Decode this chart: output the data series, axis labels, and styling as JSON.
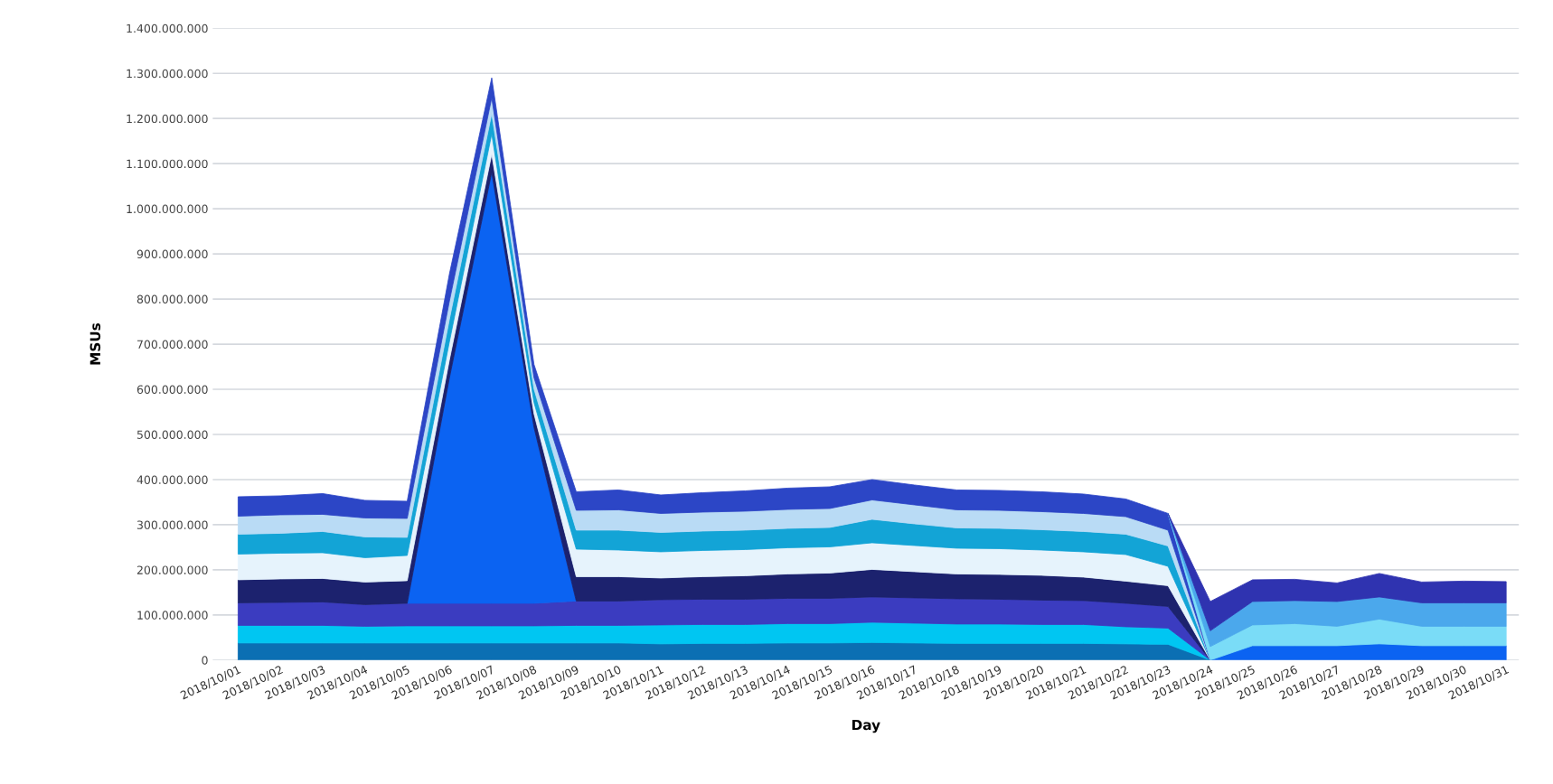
{
  "chart_data": {
    "type": "area",
    "stacked": true,
    "xlabel": "Day",
    "ylabel": "MSUs",
    "categories": [
      "2018/10/01",
      "2018/10/02",
      "2018/10/03",
      "2018/10/04",
      "2018/10/05",
      "2018/10/06",
      "2018/10/07",
      "2018/10/08",
      "2018/10/09",
      "2018/10/10",
      "2018/10/11",
      "2018/10/12",
      "2018/10/13",
      "2018/10/14",
      "2018/10/15",
      "2018/10/16",
      "2018/10/17",
      "2018/10/18",
      "2018/10/19",
      "2018/10/20",
      "2018/10/21",
      "2018/10/22",
      "2018/10/23",
      "2018/10/24",
      "2018/10/25",
      "2018/10/26",
      "2018/10/27",
      "2018/10/28",
      "2018/10/29",
      "2018/10/30",
      "2018/10/31"
    ],
    "series": [
      {
        "color": "#0b6fb3",
        "values": [
          38000000,
          38000000,
          38000000,
          38000000,
          38000000,
          38000000,
          38000000,
          38000000,
          38000000,
          38000000,
          36000000,
          37000000,
          37000000,
          38000000,
          38000000,
          39000000,
          38000000,
          37000000,
          37000000,
          37000000,
          37000000,
          36000000,
          35000000,
          0,
          null,
          null,
          null,
          null,
          null,
          null,
          null
        ]
      },
      {
        "color": "#00c6f2",
        "values": [
          39000000,
          39000000,
          39000000,
          37000000,
          38000000,
          38000000,
          38000000,
          38000000,
          39000000,
          39000000,
          42000000,
          42000000,
          42000000,
          43000000,
          43000000,
          45000000,
          44000000,
          43000000,
          43000000,
          42000000,
          42000000,
          38000000,
          36000000,
          0,
          null,
          null,
          null,
          null,
          null,
          null,
          null
        ]
      },
      {
        "color": "#3b3cc0",
        "values": [
          50000000,
          51000000,
          52000000,
          48000000,
          50000000,
          50000000,
          50000000,
          50000000,
          54000000,
          54000000,
          56000000,
          56000000,
          56000000,
          56000000,
          56000000,
          56000000,
          56000000,
          56000000,
          55000000,
          54000000,
          53000000,
          52000000,
          48000000,
          0,
          null,
          null,
          null,
          null,
          null,
          null,
          null
        ]
      },
      {
        "color": "#0b63f2",
        "values": [
          null,
          null,
          null,
          null,
          0,
          500000000,
          955000000,
          390000000,
          0,
          null,
          null,
          null,
          null,
          null,
          null,
          null,
          null,
          null,
          null,
          null,
          null,
          null,
          null,
          0,
          32000000,
          32000000,
          32000000,
          36000000,
          32000000,
          32000000,
          32000000
        ]
      },
      {
        "color": "#1c226e",
        "values": [
          51000000,
          52000000,
          52000000,
          50000000,
          50000000,
          40000000,
          40000000,
          30000000,
          54000000,
          54000000,
          48000000,
          50000000,
          52000000,
          54000000,
          56000000,
          61000000,
          58000000,
          55000000,
          55000000,
          55000000,
          52000000,
          49000000,
          46000000,
          0,
          null,
          null,
          null,
          null,
          null,
          null,
          null
        ]
      },
      {
        "color": "#e6f3fc",
        "values": [
          57000000,
          57000000,
          57000000,
          54000000,
          56000000,
          40000000,
          45000000,
          25000000,
          61000000,
          59000000,
          58000000,
          58000000,
          58000000,
          58000000,
          58000000,
          59000000,
          58000000,
          57000000,
          57000000,
          56000000,
          56000000,
          59000000,
          43000000,
          0,
          null,
          null,
          null,
          null,
          null,
          null,
          null
        ]
      },
      {
        "color": "#13a4d6",
        "values": [
          44000000,
          44000000,
          47000000,
          46000000,
          40000000,
          50000000,
          45000000,
          30000000,
          42000000,
          44000000,
          43000000,
          43000000,
          43000000,
          43000000,
          43000000,
          52000000,
          48000000,
          45000000,
          45000000,
          45000000,
          45000000,
          45000000,
          45000000,
          0,
          null,
          null,
          null,
          null,
          null,
          null,
          null
        ]
      },
      {
        "color": "#b9dbf5",
        "values": [
          40000000,
          41000000,
          38000000,
          42000000,
          42000000,
          40000000,
          35000000,
          25000000,
          44000000,
          45000000,
          42000000,
          42000000,
          42000000,
          42000000,
          42000000,
          43000000,
          42000000,
          40000000,
          40000000,
          40000000,
          40000000,
          39000000,
          35000000,
          0,
          null,
          null,
          null,
          null,
          null,
          null,
          null
        ]
      },
      {
        "color": "#2c46c6",
        "values": [
          43000000,
          42000000,
          46000000,
          39000000,
          38000000,
          60000000,
          44000000,
          29000000,
          41000000,
          44000000,
          41000000,
          43000000,
          45000000,
          47000000,
          48000000,
          45000000,
          44000000,
          44000000,
          44000000,
          44000000,
          43000000,
          39000000,
          37000000,
          0,
          null,
          null,
          null,
          null,
          null,
          null,
          null
        ]
      },
      {
        "color": "#7adcf7",
        "values": [
          null,
          null,
          null,
          null,
          null,
          null,
          null,
          null,
          null,
          null,
          null,
          null,
          null,
          null,
          null,
          null,
          null,
          null,
          null,
          null,
          null,
          null,
          0,
          30000000,
          46000000,
          49000000,
          43000000,
          55000000,
          43000000,
          43000000,
          43000000
        ]
      },
      {
        "color": "#4ba8ec",
        "values": [
          null,
          null,
          null,
          null,
          null,
          null,
          null,
          null,
          null,
          null,
          null,
          null,
          null,
          null,
          null,
          null,
          null,
          null,
          null,
          null,
          null,
          null,
          0,
          35000000,
          52000000,
          51000000,
          55000000,
          49000000,
          52000000,
          52000000,
          52000000
        ]
      },
      {
        "color": "#2f33b0",
        "values": [
          null,
          null,
          null,
          null,
          null,
          null,
          null,
          null,
          null,
          null,
          null,
          null,
          null,
          null,
          null,
          null,
          null,
          null,
          null,
          null,
          null,
          null,
          0,
          65000000,
          48000000,
          47000000,
          41000000,
          52000000,
          46000000,
          48000000,
          47000000
        ]
      }
    ],
    "ylim": [
      0,
      1400000000
    ],
    "yticks": [
      0,
      {
        "value": 100000000,
        "label": "100.000.000"
      },
      {
        "value": 200000000,
        "label": "200.000.000"
      },
      {
        "value": 300000000,
        "label": "300.000.000"
      },
      {
        "value": 400000000,
        "label": "400.000.000"
      },
      {
        "value": 500000000,
        "label": "500.000.000"
      },
      {
        "value": 600000000,
        "label": "600.000.000"
      },
      {
        "value": 700000000,
        "label": "700.000.000"
      },
      {
        "value": 800000000,
        "label": "800.000.000"
      },
      {
        "value": 900000000,
        "label": "900.000.000"
      },
      {
        "value": 1000000000,
        "label": "1.000.000.000"
      },
      {
        "value": 1100000000,
        "label": "1.100.000.000"
      },
      {
        "value": 1200000000,
        "label": "1.200.000.000"
      },
      {
        "value": 1300000000,
        "label": "1.300.000.000"
      },
      {
        "value": 1400000000,
        "label": "1.400.000.000"
      }
    ],
    "grid": "y",
    "legend": false
  }
}
